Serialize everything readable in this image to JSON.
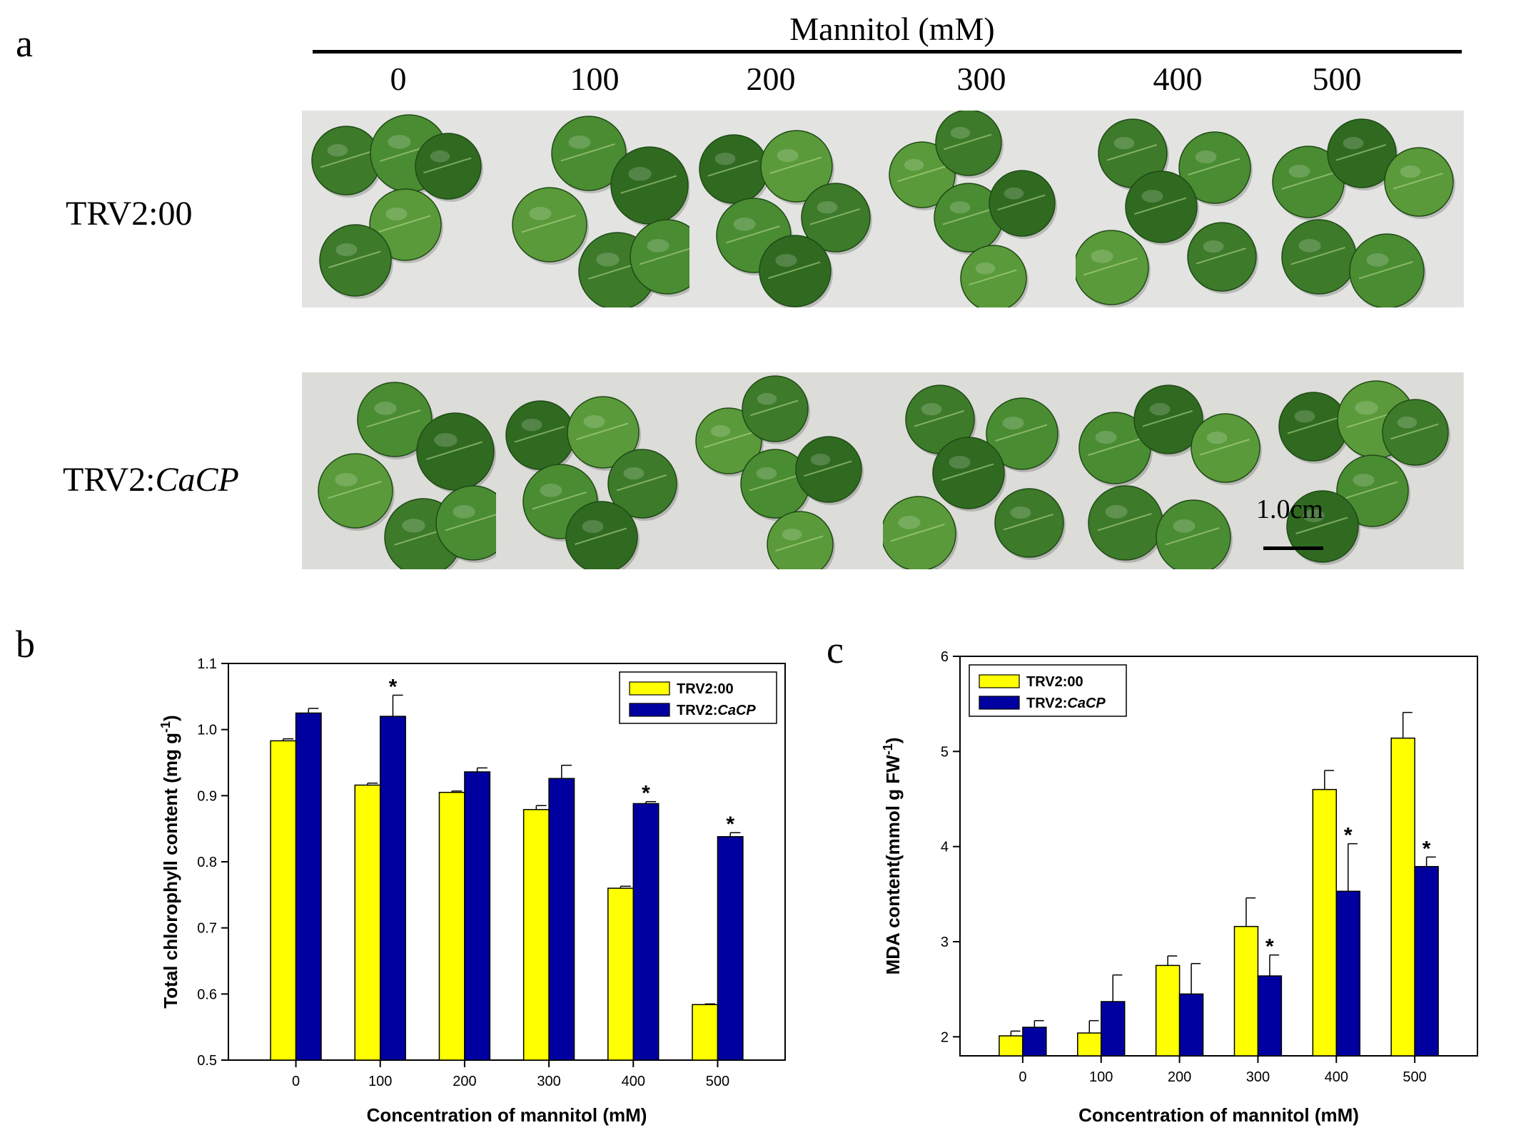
{
  "panel_a": {
    "letter": "a",
    "title": "Mannitol (mM)",
    "concentrations": [
      "0",
      "100",
      "200",
      "300",
      "400",
      "500"
    ],
    "rows": [
      {
        "prefix": "TRV2:",
        "suffix": "00",
        "italic_suffix": false
      },
      {
        "prefix": "TRV2:",
        "suffix": "CaCP",
        "italic_suffix": true
      }
    ],
    "scale_bar_label": "1.0cm",
    "leaf_colors": [
      "#3d7a2a",
      "#4a8c32",
      "#2f6a20",
      "#5a9a3a"
    ]
  },
  "chart_data": [
    {
      "panel": "b",
      "type": "bar",
      "categories": [
        "0",
        "100",
        "200",
        "300",
        "400",
        "500"
      ],
      "series": [
        {
          "name_prefix": "TRV2:",
          "name_suffix": "00",
          "italic_suffix": false,
          "color": "#ffff00",
          "values": [
            0.983,
            0.916,
            0.905,
            0.879,
            0.76,
            0.584
          ],
          "errors": [
            0.003,
            0.003,
            0.002,
            0.006,
            0.003,
            0.001
          ]
        },
        {
          "name_prefix": "TRV2:",
          "name_suffix": "CaCP",
          "italic_suffix": true,
          "color": "#0000a0",
          "values": [
            1.025,
            1.02,
            0.936,
            0.926,
            0.888,
            0.838
          ],
          "errors": [
            0.007,
            0.032,
            0.006,
            0.02,
            0.003,
            0.006
          ]
        }
      ],
      "significant": [
        false,
        true,
        false,
        false,
        true,
        true
      ],
      "significance_marker": "*",
      "xlabel": "Concentration of mannitol (mM)",
      "ylabel_main": "Total chlorophyll content (mg g",
      "ylabel_sup": "-1",
      "ylabel_end": ")",
      "ylim": [
        0.5,
        1.1
      ],
      "yticks": [
        "0.5",
        "0.6",
        "0.7",
        "0.8",
        "0.9",
        "1.0",
        "1.1"
      ],
      "legend_position": "top-right",
      "grid": false
    },
    {
      "panel": "c",
      "type": "bar",
      "categories": [
        "0",
        "100",
        "200",
        "300",
        "400",
        "500"
      ],
      "series": [
        {
          "name_prefix": "TRV2:",
          "name_suffix": "00",
          "italic_suffix": false,
          "color": "#ffff00",
          "values": [
            2.01,
            2.04,
            2.75,
            3.16,
            4.6,
            5.14
          ],
          "errors": [
            0.05,
            0.13,
            0.1,
            0.3,
            0.2,
            0.27
          ]
        },
        {
          "name_prefix": "TRV2:",
          "name_suffix": "CaCP",
          "italic_suffix": true,
          "color": "#0000a0",
          "values": [
            2.1,
            2.37,
            2.45,
            2.64,
            3.53,
            3.79
          ],
          "errors": [
            0.07,
            0.28,
            0.32,
            0.22,
            0.5,
            0.1
          ]
        }
      ],
      "significant": [
        false,
        false,
        false,
        true,
        true,
        true
      ],
      "significance_marker": "*",
      "xlabel": "Concentration of mannitol (mM)",
      "ylabel_main": "MDA content(mmol g FW",
      "ylabel_sup": "-1",
      "ylabel_end": ")",
      "ylim": [
        1.8,
        6
      ],
      "yticks": [
        "2",
        "3",
        "4",
        "5",
        "6"
      ],
      "legend_position": "top-left",
      "grid": false
    }
  ],
  "panel_letters": {
    "b": "b",
    "c": "c"
  }
}
